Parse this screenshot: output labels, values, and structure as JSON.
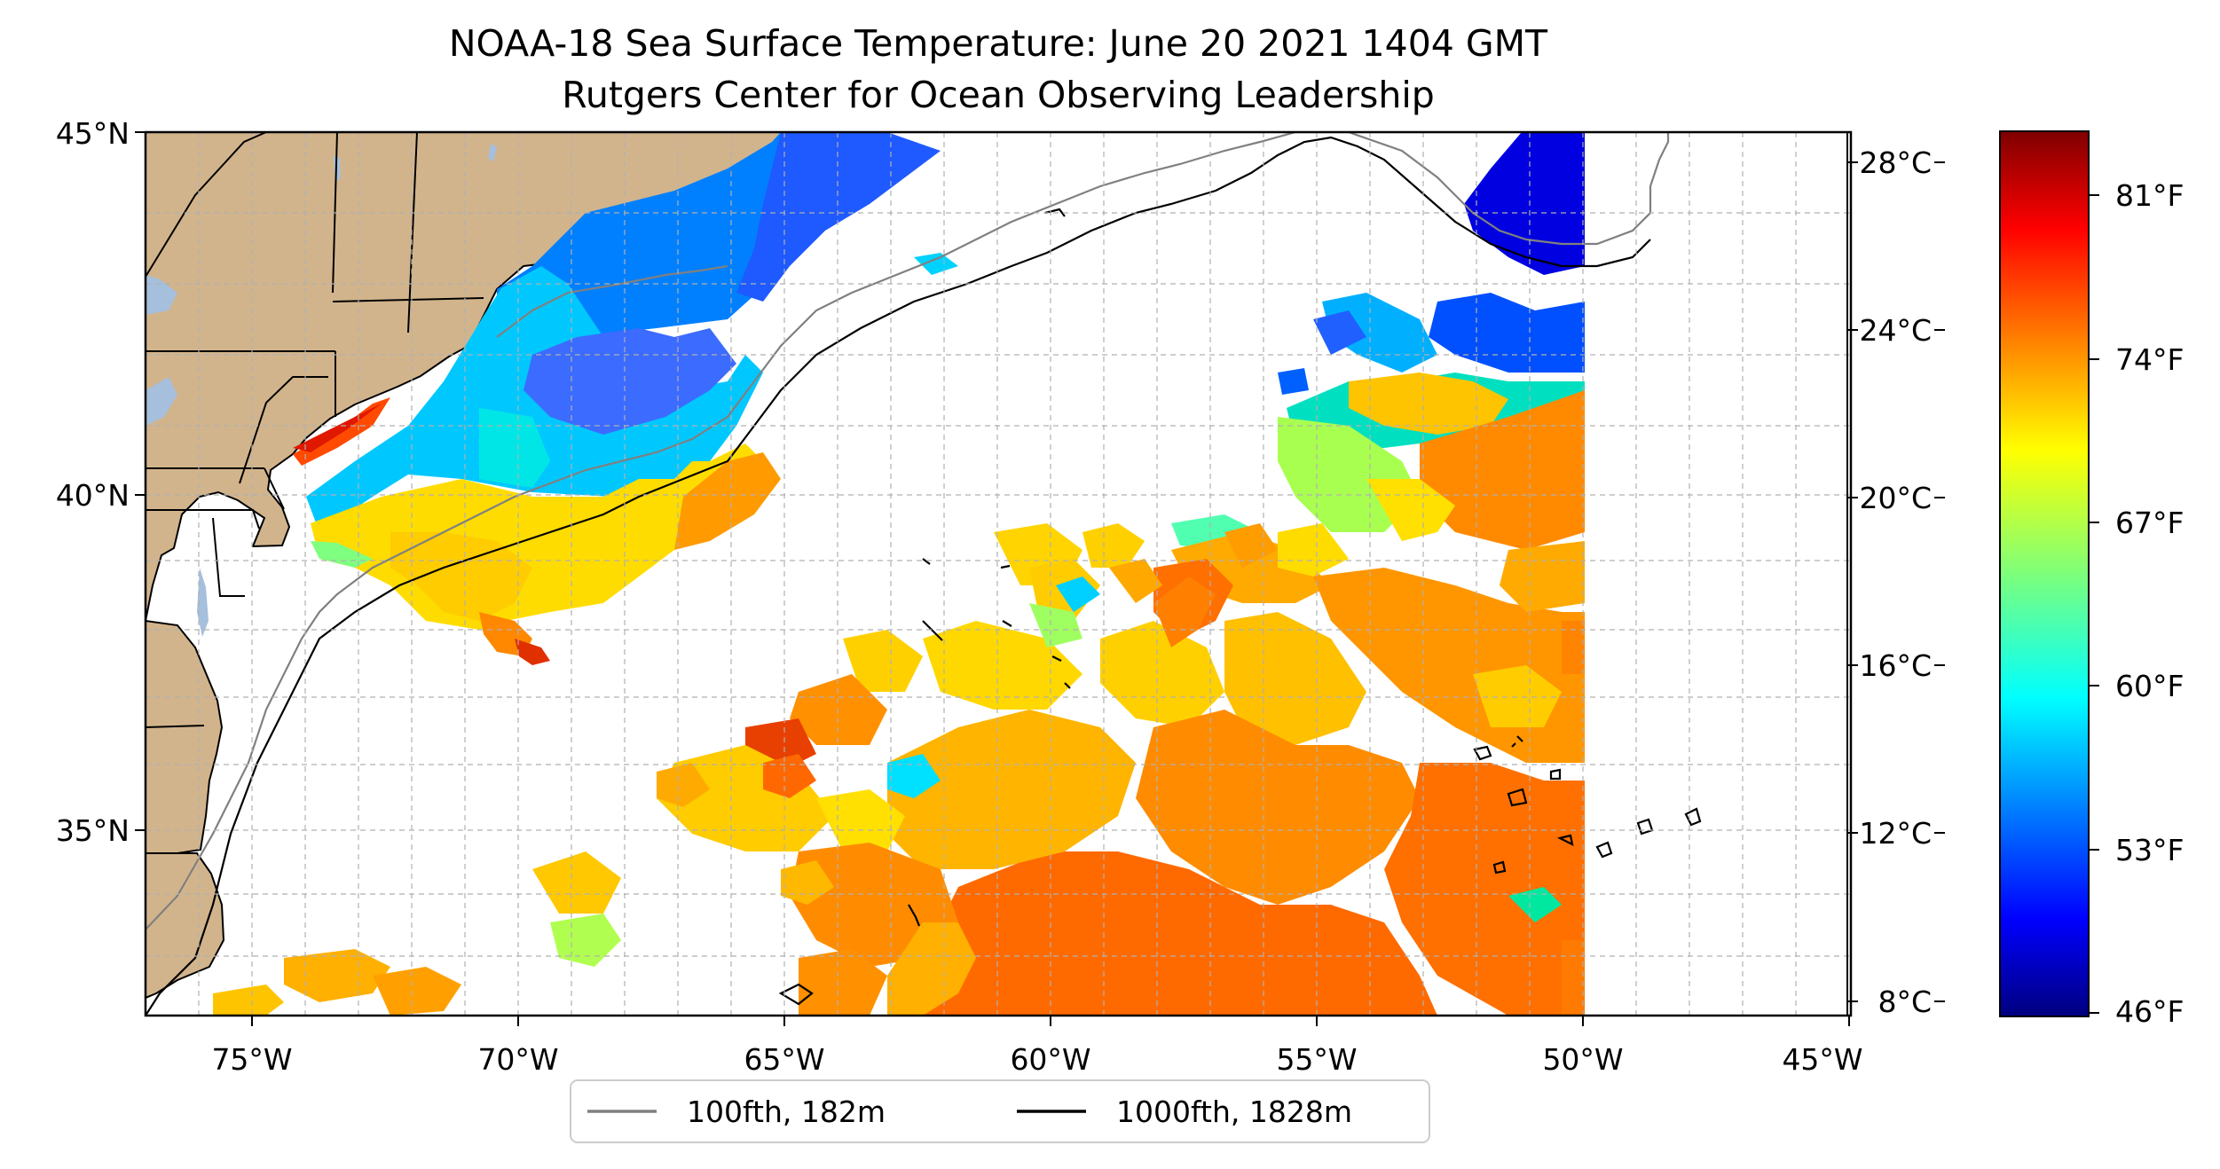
{
  "map": {
    "title": "NOAA-18 Sea Surface Temperature: June 20 2021 1404 GMT",
    "subtitle": "Rutgers Center for Ocean Observing Leadership",
    "lat_labels": [
      "45°N",
      "40°N",
      "35°N"
    ],
    "lon_labels": [
      "75°W",
      "70°W",
      "65°W",
      "60°W",
      "55°W",
      "50°W",
      "45°W"
    ],
    "extent": {
      "lon_min": -77,
      "lon_max": -45,
      "lat_min": 32.2,
      "lat_max": 45
    },
    "land_color": "#d2b48c",
    "water_body_color": "#a5bfdd"
  },
  "colorbar": {
    "celsius_labels": [
      "28°C",
      "24°C",
      "20°C",
      "16°C",
      "12°C",
      "8°C"
    ],
    "fahrenheit_labels": [
      "81°F",
      "74°F",
      "67°F",
      "60°F",
      "53°F",
      "46°F"
    ],
    "colormap": "jet"
  },
  "legend": {
    "items": [
      {
        "label": "100fth, 182m",
        "color": "#808080"
      },
      {
        "label": "1000fth, 1828m",
        "color": "#000000"
      }
    ]
  }
}
